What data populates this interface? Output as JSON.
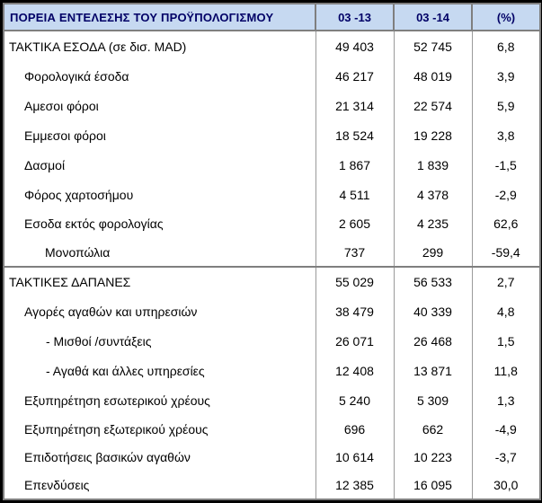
{
  "header": {
    "title": "ΠΟΡΕΙΑ ΕΝΤΕΛΕΣΗΣ ΤΟΥ ΠΡΟΫΠΟΛΟΓΙΣΜΟΥ",
    "col_2013": "03 -13",
    "col_2014": "03  -14",
    "col_pct": "(%)"
  },
  "rows": [
    {
      "label": "ΤΑΚΤΙΚΑ ΕΣΟΔΑ (σε δισ. MAD)",
      "v13": "49 403",
      "v14": "52 745",
      "pct": "6,8"
    },
    {
      "label": "Φορολογικά έσοδα",
      "v13": "46 217",
      "v14": "48 019",
      "pct": "3,9"
    },
    {
      "label": "Αμεσοι φόροι",
      "v13": "21 314",
      "v14": "22 574",
      "pct": "5,9"
    },
    {
      "label": "Εμμεσοι φόροι",
      "v13": "18 524",
      "v14": "19 228",
      "pct": "3,8"
    },
    {
      "label": "Δασμοί",
      "v13": "1 867",
      "v14": "1 839",
      "pct": "-1,5"
    },
    {
      "label": "Φόρος χαρτοσήμου",
      "v13": "4 511",
      "v14": "4 378",
      "pct": "-2,9"
    },
    {
      "label": "Εσοδα εκτός φορολογίας",
      "v13": "2 605",
      "v14": "4 235",
      "pct": "62,6"
    },
    {
      "label": "Μονοπώλια",
      "v13": "737",
      "v14": "299",
      "pct": "-59,4"
    },
    {
      "label": "ΤΑΚΤΙΚΕΣ ΔΑΠΑΝΕΣ",
      "v13": "55 029",
      "v14": "56 533",
      "pct": "2,7"
    },
    {
      "label": "Αγορές αγαθών και υπηρεσιών",
      "v13": "38 479",
      "v14": "40 339",
      "pct": "4,8"
    },
    {
      "label": "- Μισθοί /συντάξεις",
      "v13": "26 071",
      "v14": "26 468",
      "pct": "1,5"
    },
    {
      "label": "- Αγαθά και άλλες υπηρεσίες",
      "v13": "12 408",
      "v14": "13 871",
      "pct": "11,8"
    },
    {
      "label": "Εξυπηρέτηση εσωτερικού χρέους",
      "v13": "5 240",
      "v14": "5 309",
      "pct": "1,3"
    },
    {
      "label": "Εξυπηρέτηση εξωτερικού χρέους",
      "v13": "696",
      "v14": "662",
      "pct": "-4,9"
    },
    {
      "label": "Επιδοτήσεις βασικών αγαθών",
      "v13": "10 614",
      "v14": "10 223",
      "pct": "-3,7"
    },
    {
      "label": "Επενδύσεις",
      "v13": "12 385",
      "v14": "16 095",
      "pct": "30,0"
    }
  ]
}
